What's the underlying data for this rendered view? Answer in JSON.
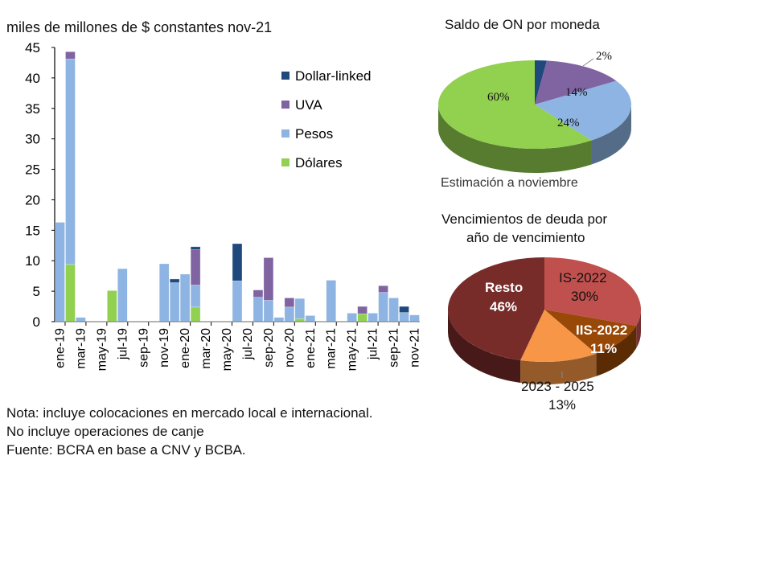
{
  "chart_data": [
    {
      "type": "bar",
      "stacked": true,
      "title": "miles de millones de $ constantes nov-21",
      "xlabel": "",
      "ylabel": "",
      "ylim": [
        0,
        45
      ],
      "yticks": [
        0,
        5,
        10,
        15,
        20,
        25,
        30,
        35,
        40,
        45
      ],
      "categories": [
        "ene-19",
        "feb-19",
        "mar-19",
        "abr-19",
        "may-19",
        "jun-19",
        "jul-19",
        "ago-19",
        "sep-19",
        "oct-19",
        "nov-19",
        "dic-19",
        "ene-20",
        "feb-20",
        "mar-20",
        "abr-20",
        "may-20",
        "jun-20",
        "jul-20",
        "ago-20",
        "sep-20",
        "oct-20",
        "nov-20",
        "dic-20",
        "ene-21",
        "feb-21",
        "mar-21",
        "abr-21",
        "may-21",
        "jun-21",
        "jul-21",
        "ago-21",
        "sep-21",
        "oct-21",
        "nov-21"
      ],
      "tick_labels": [
        "ene-19",
        "mar-19",
        "may-19",
        "jul-19",
        "sep-19",
        "nov-19",
        "ene-20",
        "mar-20",
        "may-20",
        "jul-20",
        "sep-20",
        "nov-20",
        "ene-21",
        "mar-21",
        "may-21",
        "jul-21",
        "sep-21",
        "nov-21"
      ],
      "series": [
        {
          "name": "Dólares",
          "color": "#92d050",
          "values": [
            0,
            9.4,
            0,
            0,
            0,
            5.1,
            0,
            0,
            0,
            0,
            0,
            0,
            0,
            2.4,
            0,
            0,
            0,
            0,
            0,
            0,
            0,
            0,
            0,
            0.5,
            0,
            0,
            0,
            0,
            0,
            1.3,
            0,
            0,
            0,
            0,
            0
          ]
        },
        {
          "name": "Pesos",
          "color": "#8db4e2",
          "values": [
            16.3,
            33.7,
            0.7,
            0,
            0,
            0,
            8.7,
            0,
            0,
            0,
            9.5,
            6.4,
            7.8,
            3.6,
            0,
            0,
            0,
            6.7,
            0,
            4.0,
            3.5,
            0.7,
            2.4,
            3.3,
            1.0,
            0,
            6.8,
            0,
            1.4,
            0,
            1.4,
            4.8,
            3.9,
            1.5,
            1.1
          ]
        },
        {
          "name": "UVA",
          "color": "#8064a2",
          "values": [
            0,
            1.2,
            0,
            0,
            0,
            0,
            0,
            0,
            0,
            0,
            0,
            0,
            0,
            5.8,
            0,
            0,
            0,
            0,
            0,
            1.2,
            7.0,
            0,
            1.5,
            0,
            0,
            0,
            0,
            0,
            0,
            1.2,
            0,
            1.1,
            0,
            0,
            0
          ]
        },
        {
          "name": "Dollar-linked",
          "color": "#1f497d",
          "values": [
            0,
            0,
            0,
            0,
            0,
            0,
            0,
            0,
            0,
            0,
            0,
            0.6,
            0,
            0.5,
            0,
            0,
            0,
            6.1,
            0,
            0,
            0,
            0,
            0,
            0,
            0,
            0,
            0,
            0,
            0,
            0,
            0,
            0,
            0,
            1.0,
            0
          ]
        }
      ],
      "legend": [
        "Dollar-linked",
        "UVA",
        "Pesos",
        "Dólares"
      ],
      "legend_placement": "top-right"
    },
    {
      "type": "pie",
      "title": "Saldo de ON por moneda",
      "subtitle": "Estimación a noviembre",
      "slices": [
        {
          "label": "Dollar-linked",
          "value": 2,
          "text": "2%",
          "color": "#1f497d"
        },
        {
          "label": "UVA",
          "value": 14,
          "text": "14%",
          "color": "#8064a2"
        },
        {
          "label": "Pesos",
          "value": 24,
          "text": "24%",
          "color": "#8db4e2"
        },
        {
          "label": "Dólares",
          "value": 60,
          "text": "60%",
          "color": "#92d050"
        }
      ]
    },
    {
      "type": "pie",
      "title": "Vencimientos de deuda por año de vencimiento",
      "title_lines": [
        "Vencimientos de deuda por",
        "año de vencimiento"
      ],
      "slices": [
        {
          "label": "IS-2022",
          "value": 30,
          "text": "30%",
          "color": "#c0504d"
        },
        {
          "label": "IIS-2022",
          "value": 11,
          "text": "11%",
          "color": "#984807"
        },
        {
          "label": "2023 - 2025",
          "value": 13,
          "text": "13%",
          "color": "#f79646"
        },
        {
          "label": "Resto",
          "value": 46,
          "text": "46%",
          "color": "#772c2a"
        }
      ]
    }
  ],
  "notes": [
    "Nota: incluye colocaciones en mercado local e internacional.",
    "No incluye operaciones de canje",
    "Fuente: BCRA en base a CNV y BCBA."
  ]
}
